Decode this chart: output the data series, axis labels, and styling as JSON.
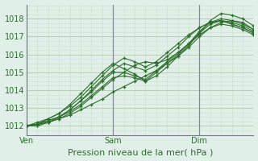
{
  "title": "Pression niveau de la mer( hPa )",
  "bg_color": "#e0f0e8",
  "grid_color_major": "#b8ccb8",
  "grid_color_minor": "#cce0cc",
  "line_color": "#2d6e2d",
  "vline_color": "#888899",
  "ylim": [
    1011.5,
    1018.8
  ],
  "yticks": [
    1012,
    1013,
    1014,
    1015,
    1016,
    1017,
    1018
  ],
  "xlabel_ticks": [
    0,
    48,
    96
  ],
  "xlabel_labels": [
    "Ven",
    "Sam",
    "Dim"
  ],
  "xlim": [
    0,
    126
  ],
  "series": [
    [
      0,
      1012.0,
      6,
      1012.1,
      12,
      1012.2,
      18,
      1012.4,
      24,
      1012.6,
      30,
      1012.9,
      36,
      1013.2,
      42,
      1013.5,
      48,
      1013.9,
      54,
      1014.2,
      60,
      1014.5,
      66,
      1014.8,
      72,
      1015.1,
      78,
      1015.5,
      84,
      1015.9,
      90,
      1016.4,
      96,
      1017.0,
      102,
      1017.5,
      108,
      1017.8,
      114,
      1017.9,
      120,
      1017.8,
      126,
      1017.4
    ],
    [
      0,
      1012.0,
      6,
      1012.1,
      12,
      1012.3,
      18,
      1012.5,
      24,
      1012.8,
      30,
      1013.2,
      36,
      1013.7,
      42,
      1014.2,
      48,
      1014.7,
      54,
      1014.8,
      60,
      1014.7,
      66,
      1014.5,
      72,
      1014.8,
      78,
      1015.3,
      84,
      1015.9,
      90,
      1016.5,
      96,
      1017.2,
      102,
      1017.9,
      108,
      1018.3,
      114,
      1018.2,
      120,
      1018.0,
      126,
      1017.6
    ],
    [
      0,
      1012.0,
      6,
      1012.0,
      12,
      1012.2,
      18,
      1012.4,
      24,
      1012.7,
      30,
      1013.1,
      36,
      1013.6,
      42,
      1014.1,
      48,
      1014.6,
      54,
      1015.0,
      60,
      1015.4,
      66,
      1015.6,
      72,
      1015.5,
      78,
      1015.7,
      84,
      1016.1,
      90,
      1016.6,
      96,
      1017.2,
      102,
      1017.7,
      108,
      1017.9,
      114,
      1017.8,
      120,
      1017.6,
      126,
      1017.3
    ],
    [
      0,
      1012.0,
      6,
      1012.1,
      12,
      1012.3,
      18,
      1012.5,
      24,
      1012.9,
      30,
      1013.4,
      36,
      1014.0,
      42,
      1014.6,
      48,
      1015.1,
      54,
      1015.5,
      60,
      1015.3,
      66,
      1015.1,
      72,
      1015.4,
      78,
      1015.9,
      84,
      1016.4,
      90,
      1017.0,
      96,
      1017.5,
      102,
      1017.8,
      108,
      1017.9,
      114,
      1017.7,
      120,
      1017.5,
      126,
      1017.2
    ],
    [
      0,
      1012.0,
      6,
      1012.1,
      12,
      1012.4,
      18,
      1012.7,
      24,
      1013.1,
      30,
      1013.6,
      36,
      1014.2,
      42,
      1014.8,
      48,
      1015.4,
      54,
      1015.8,
      60,
      1015.6,
      66,
      1015.3,
      72,
      1015.6,
      78,
      1016.1,
      84,
      1016.6,
      90,
      1017.1,
      96,
      1017.5,
      102,
      1017.8,
      108,
      1017.9,
      114,
      1017.7,
      120,
      1017.5,
      126,
      1017.2
    ],
    [
      0,
      1012.0,
      6,
      1012.2,
      12,
      1012.4,
      18,
      1012.7,
      24,
      1013.2,
      30,
      1013.8,
      36,
      1014.4,
      42,
      1015.0,
      48,
      1015.5,
      54,
      1015.2,
      60,
      1014.9,
      66,
      1014.5,
      72,
      1015.0,
      78,
      1015.5,
      84,
      1016.0,
      90,
      1016.6,
      96,
      1017.3,
      102,
      1017.8,
      108,
      1018.0,
      114,
      1017.9,
      120,
      1017.7,
      126,
      1017.4
    ],
    [
      0,
      1012.0,
      6,
      1012.0,
      12,
      1012.2,
      18,
      1012.5,
      24,
      1012.9,
      30,
      1013.4,
      36,
      1013.9,
      42,
      1014.5,
      48,
      1015.0,
      54,
      1015.0,
      60,
      1014.8,
      66,
      1014.6,
      72,
      1015.1,
      78,
      1015.6,
      84,
      1016.1,
      90,
      1016.6,
      96,
      1017.1,
      102,
      1017.5,
      108,
      1017.7,
      114,
      1017.6,
      120,
      1017.4,
      126,
      1017.1
    ]
  ],
  "vlines": [
    0,
    48,
    96
  ],
  "fontsize_tick": 7,
  "fontsize_xlabel": 8
}
